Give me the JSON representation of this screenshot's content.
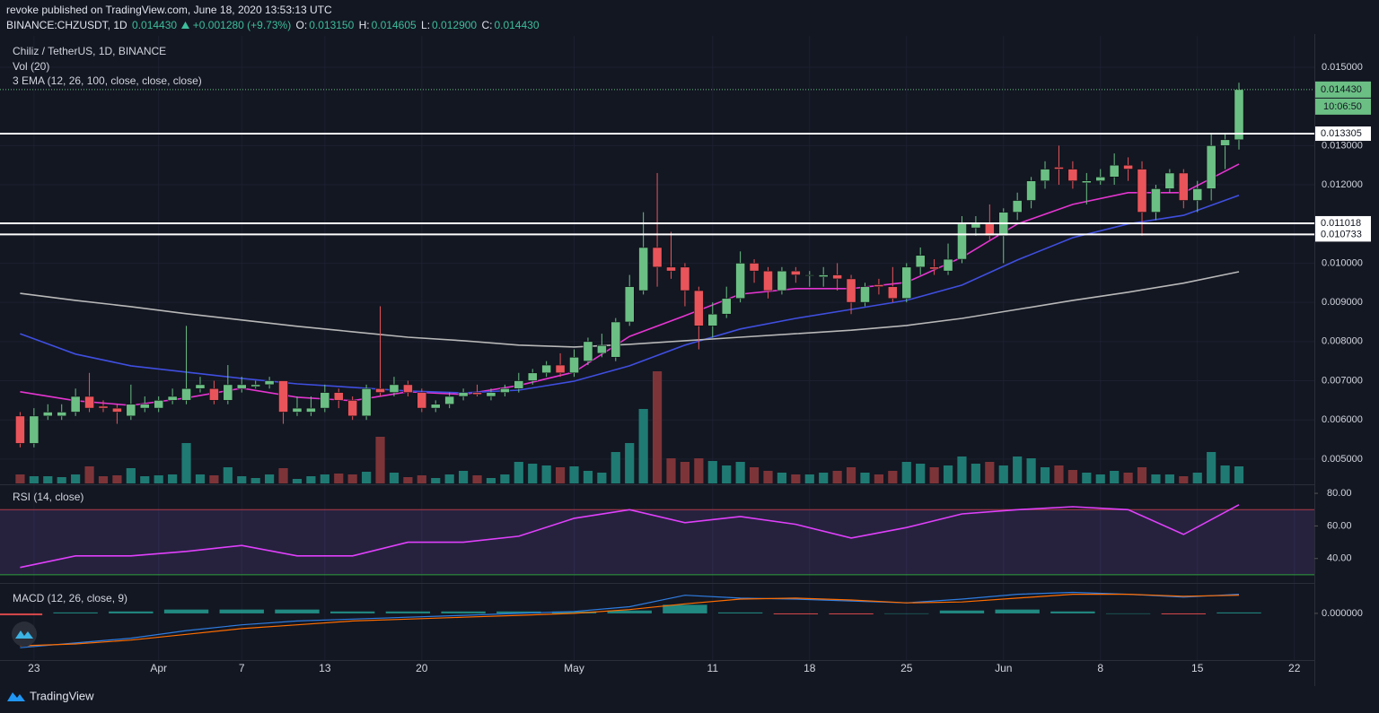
{
  "header": {
    "published": "revoke published on TradingView.com, June 18, 2020 13:53:13 UTC",
    "symbol": "BINANCE:CHZUSDT, 1D",
    "last": "0.014430",
    "change": "+0.001280 (+9.73%)",
    "ohlc": [
      {
        "label": "O:",
        "value": "0.013150"
      },
      {
        "label": "H:",
        "value": "0.014605"
      },
      {
        "label": "L:",
        "value": "0.012900"
      },
      {
        "label": "C:",
        "value": "0.014430"
      }
    ]
  },
  "footer": {
    "brand": "TradingView"
  },
  "chart_data": {
    "type": "candlestick",
    "title": "Chiliz / TetherUS, 1D, BINANCE",
    "x": [
      "2020-03-22",
      "2020-03-23",
      "2020-03-24",
      "2020-03-25",
      "2020-03-26",
      "2020-03-27",
      "2020-03-28",
      "2020-03-29",
      "2020-03-30",
      "2020-03-31",
      "2020-04-01",
      "2020-04-02",
      "2020-04-03",
      "2020-04-04",
      "2020-04-05",
      "2020-04-06",
      "2020-04-07",
      "2020-04-08",
      "2020-04-09",
      "2020-04-10",
      "2020-04-11",
      "2020-04-12",
      "2020-04-13",
      "2020-04-14",
      "2020-04-15",
      "2020-04-16",
      "2020-04-17",
      "2020-04-18",
      "2020-04-19",
      "2020-04-20",
      "2020-04-21",
      "2020-04-22",
      "2020-04-23",
      "2020-04-24",
      "2020-04-25",
      "2020-04-26",
      "2020-04-27",
      "2020-04-28",
      "2020-04-29",
      "2020-04-30",
      "2020-05-01",
      "2020-05-02",
      "2020-05-03",
      "2020-05-04",
      "2020-05-05",
      "2020-05-06",
      "2020-05-07",
      "2020-05-08",
      "2020-05-09",
      "2020-05-10",
      "2020-05-11",
      "2020-05-12",
      "2020-05-13",
      "2020-05-14",
      "2020-05-15",
      "2020-05-16",
      "2020-05-17",
      "2020-05-18",
      "2020-05-19",
      "2020-05-20",
      "2020-05-21",
      "2020-05-22",
      "2020-05-23",
      "2020-05-24",
      "2020-05-25",
      "2020-05-26",
      "2020-05-27",
      "2020-05-28",
      "2020-05-29",
      "2020-05-30",
      "2020-05-31",
      "2020-06-01",
      "2020-06-02",
      "2020-06-03",
      "2020-06-04",
      "2020-06-05",
      "2020-06-06",
      "2020-06-07",
      "2020-06-08",
      "2020-06-09",
      "2020-06-10",
      "2020-06-11",
      "2020-06-12",
      "2020-06-13",
      "2020-06-14",
      "2020-06-15",
      "2020-06-16",
      "2020-06-17",
      "2020-06-18"
    ],
    "open": [
      0.0061,
      0.0054,
      0.0061,
      0.0061,
      0.0062,
      0.0066,
      0.00635,
      0.0063,
      0.0061,
      0.0063,
      0.0063,
      0.0065,
      0.0065,
      0.0068,
      0.0068,
      0.0065,
      0.0068,
      0.00685,
      0.0069,
      0.007,
      0.0062,
      0.0062,
      0.0063,
      0.0067,
      0.0065,
      0.0061,
      0.0068,
      0.0067,
      0.0069,
      0.0067,
      0.0063,
      0.0064,
      0.0066,
      0.0067,
      0.0066,
      0.0067,
      0.0068,
      0.007,
      0.0072,
      0.0074,
      0.0072,
      0.0075,
      0.0077,
      0.0076,
      0.0085,
      0.0093,
      0.0104,
      0.0099,
      0.0099,
      0.0093,
      0.0084,
      0.0087,
      0.0091,
      0.01,
      0.0098,
      0.0093,
      0.0098,
      0.0097,
      0.00965,
      0.0097,
      0.0096,
      0.009,
      0.00945,
      0.0094,
      0.0091,
      0.0099,
      0.0099,
      0.0098,
      0.0101,
      0.0109,
      0.011,
      0.0107,
      0.0113,
      0.0116,
      0.0121,
      0.01245,
      0.0124,
      0.01205,
      0.0121,
      0.0122,
      0.0125,
      0.0124,
      0.0113,
      0.0119,
      0.0123,
      0.0116,
      0.0119,
      0.013,
      0.01315
    ],
    "high": [
      0.0062,
      0.0063,
      0.0064,
      0.0064,
      0.0068,
      0.0072,
      0.0065,
      0.0064,
      0.0069,
      0.0066,
      0.0066,
      0.0068,
      0.0084,
      0.0071,
      0.007,
      0.0074,
      0.0071,
      0.007,
      0.0071,
      0.007,
      0.0066,
      0.0066,
      0.0069,
      0.0068,
      0.0066,
      0.0069,
      0.0089,
      0.0071,
      0.007,
      0.0068,
      0.0065,
      0.0067,
      0.0068,
      0.0069,
      0.0068,
      0.0069,
      0.0072,
      0.0073,
      0.0075,
      0.0077,
      0.0078,
      0.0081,
      0.0082,
      0.0086,
      0.0097,
      0.0113,
      0.0123,
      0.0108,
      0.01,
      0.0094,
      0.009,
      0.0094,
      0.0103,
      0.0101,
      0.0099,
      0.0099,
      0.0099,
      0.0098,
      0.0099,
      0.01,
      0.0097,
      0.0095,
      0.0096,
      0.0099,
      0.01,
      0.0104,
      0.0101,
      0.0105,
      0.0112,
      0.0112,
      0.0115,
      0.0114,
      0.0118,
      0.0122,
      0.0126,
      0.013,
      0.0126,
      0.0123,
      0.0124,
      0.0128,
      0.0127,
      0.0126,
      0.012,
      0.0124,
      0.0124,
      0.0121,
      0.0133,
      0.0133,
      0.014605
    ],
    "low": [
      0.0053,
      0.0053,
      0.006,
      0.006,
      0.0061,
      0.0062,
      0.0062,
      0.0059,
      0.006,
      0.0062,
      0.0062,
      0.0064,
      0.0064,
      0.0067,
      0.0064,
      0.0064,
      0.0067,
      0.0068,
      0.0068,
      0.0059,
      0.0061,
      0.0061,
      0.0062,
      0.0063,
      0.006,
      0.006,
      0.0066,
      0.0066,
      0.0066,
      0.0062,
      0.0062,
      0.0063,
      0.0065,
      0.0066,
      0.0065,
      0.0066,
      0.0067,
      0.0069,
      0.0071,
      0.0071,
      0.0071,
      0.0074,
      0.0076,
      0.0075,
      0.0084,
      0.0092,
      0.0094,
      0.0096,
      0.0089,
      0.0078,
      0.0081,
      0.0086,
      0.009,
      0.0095,
      0.0091,
      0.0092,
      0.0095,
      0.0094,
      0.0094,
      0.0093,
      0.0087,
      0.0089,
      0.0092,
      0.009,
      0.009,
      0.0097,
      0.0097,
      0.0097,
      0.01,
      0.0107,
      0.0106,
      0.01,
      0.0111,
      0.0114,
      0.0119,
      0.012,
      0.0119,
      0.0115,
      0.012,
      0.012,
      0.0121,
      0.0107,
      0.0111,
      0.0118,
      0.0114,
      0.0113,
      0.0116,
      0.0124,
      0.0129
    ],
    "close": [
      0.0054,
      0.0061,
      0.0062,
      0.0062,
      0.0066,
      0.0063,
      0.0063,
      0.0062,
      0.0064,
      0.0064,
      0.0065,
      0.0066,
      0.0068,
      0.0069,
      0.0065,
      0.0069,
      0.0069,
      0.0069,
      0.007,
      0.0062,
      0.0063,
      0.0063,
      0.0067,
      0.0065,
      0.0061,
      0.0068,
      0.0067,
      0.0069,
      0.0067,
      0.0063,
      0.0064,
      0.0066,
      0.0067,
      0.00665,
      0.0067,
      0.0068,
      0.007,
      0.0072,
      0.0074,
      0.0072,
      0.0076,
      0.008,
      0.0079,
      0.0085,
      0.0094,
      0.0104,
      0.0099,
      0.0098,
      0.0093,
      0.0084,
      0.0087,
      0.0091,
      0.01,
      0.0098,
      0.0093,
      0.0098,
      0.0097,
      0.0097,
      0.0097,
      0.0096,
      0.009,
      0.0094,
      0.0094,
      0.0091,
      0.0099,
      0.0102,
      0.00985,
      0.0101,
      0.011,
      0.011,
      0.0107,
      0.0113,
      0.0116,
      0.0121,
      0.0124,
      0.0124,
      0.0121,
      0.0121,
      0.0122,
      0.0125,
      0.0124,
      0.0113,
      0.0119,
      0.0123,
      0.0116,
      0.0119,
      0.013,
      0.01315,
      0.01443
    ],
    "up_color": "#6bbf84",
    "down_color": "#e8545a",
    "xlim": [
      "2020-03-21",
      "2020-06-25"
    ],
    "ylim": [
      0.00438,
      0.0158
    ],
    "yticks": [
      {
        "value": 0.005,
        "label": "0.005000"
      },
      {
        "value": 0.006,
        "label": "0.006000"
      },
      {
        "value": 0.007,
        "label": "0.007000"
      },
      {
        "value": 0.008,
        "label": "0.008000"
      },
      {
        "value": 0.009,
        "label": "0.009000"
      },
      {
        "value": 0.01,
        "label": "0.010000"
      },
      {
        "value": 0.011,
        "label": "0.011000"
      },
      {
        "value": 0.012,
        "label": "0.012000"
      },
      {
        "value": 0.013,
        "label": "0.013000"
      },
      {
        "value": 0.015,
        "label": "0.015000"
      }
    ],
    "xticks": [
      {
        "value": "2020-03-23",
        "label": "23"
      },
      {
        "value": "2020-04-01",
        "label": "Apr"
      },
      {
        "value": "2020-04-07",
        "label": "7"
      },
      {
        "value": "2020-04-13",
        "label": "13"
      },
      {
        "value": "2020-04-20",
        "label": "20"
      },
      {
        "value": "2020-05-01",
        "label": "May"
      },
      {
        "value": "2020-05-11",
        "label": "11"
      },
      {
        "value": "2020-05-18",
        "label": "18"
      },
      {
        "value": "2020-05-25",
        "label": "25"
      },
      {
        "value": "2020-06-01",
        "label": "Jun"
      },
      {
        "value": "2020-06-08",
        "label": "8"
      },
      {
        "value": "2020-06-15",
        "label": "15"
      },
      {
        "value": "2020-06-22",
        "label": "22"
      }
    ],
    "grid": true,
    "levels": [
      {
        "value": 0.013305,
        "label": "0.013305"
      },
      {
        "value": 0.011018,
        "label": "0.011018"
      },
      {
        "value": 0.010733,
        "label": "0.010733"
      }
    ],
    "last_price": {
      "value": 0.01443,
      "label": "0.014430"
    },
    "countdown": "10:06:50",
    "volume": {
      "label": "Vol (20)",
      "ylim": [
        0,
        499
      ],
      "up_color": "#1f7a73",
      "down_color": "#7d3438",
      "values": [
        10,
        8,
        8,
        7,
        10,
        19,
        8,
        9,
        17,
        8,
        9,
        10,
        45,
        10,
        9,
        18,
        8,
        6,
        10,
        17,
        5,
        8,
        10,
        11,
        10,
        13,
        52,
        12,
        7,
        9,
        6,
        10,
        14,
        9,
        6,
        10,
        24,
        22,
        20,
        18,
        19,
        14,
        12,
        35,
        45,
        83,
        125,
        28,
        24,
        28,
        25,
        20,
        24,
        18,
        14,
        12,
        10,
        10,
        12,
        14,
        18,
        12,
        10,
        14,
        24,
        22,
        18,
        20,
        30,
        22,
        24,
        20,
        30,
        28,
        18,
        20,
        15,
        12,
        10,
        14,
        12,
        18,
        10,
        10,
        8,
        12,
        35,
        20,
        19
      ]
    },
    "ema": {
      "label": "3 EMA (12, 26, 100, close, close, close)",
      "x": [
        "2020-03-22",
        "2020-03-26",
        "2020-03-30",
        "2020-04-03",
        "2020-04-07",
        "2020-04-11",
        "2020-04-15",
        "2020-04-19",
        "2020-04-23",
        "2020-04-27",
        "2020-05-01",
        "2020-05-05",
        "2020-05-09",
        "2020-05-13",
        "2020-05-17",
        "2020-05-21",
        "2020-05-25",
        "2020-05-29",
        "2020-06-02",
        "2020-06-06",
        "2020-06-10",
        "2020-06-14",
        "2020-06-18"
      ],
      "series": [
        {
          "color": "#e535d0",
          "values": [
            0.00672,
            0.00649,
            0.00637,
            0.00656,
            0.00681,
            0.00658,
            0.00649,
            0.00672,
            0.00665,
            0.00688,
            0.00722,
            0.00813,
            0.00866,
            0.00921,
            0.00935,
            0.00935,
            0.00951,
            0.01015,
            0.011,
            0.0115,
            0.0118,
            0.0118,
            0.01253
          ]
        },
        {
          "color": "#3f4fe0",
          "values": [
            0.0082,
            0.00768,
            0.00738,
            0.00722,
            0.00706,
            0.00692,
            0.00683,
            0.00674,
            0.00669,
            0.00676,
            0.00699,
            0.00738,
            0.00791,
            0.00832,
            0.00859,
            0.00882,
            0.00905,
            0.00944,
            0.01008,
            0.01065,
            0.011,
            0.01122,
            0.01173
          ]
        },
        {
          "color": "#b8b8b8",
          "values": [
            0.00923,
            0.00905,
            0.00889,
            0.00871,
            0.00855,
            0.00839,
            0.00825,
            0.00811,
            0.00802,
            0.00791,
            0.00786,
            0.00793,
            0.00802,
            0.00811,
            0.0082,
            0.00829,
            0.00841,
            0.00859,
            0.00882,
            0.00905,
            0.00926,
            0.00949,
            0.00978
          ]
        }
      ]
    },
    "rsi": {
      "label": "RSI (14, close)",
      "color": "#e040fb",
      "x": [
        "2020-03-22",
        "2020-03-26",
        "2020-03-30",
        "2020-04-03",
        "2020-04-07",
        "2020-04-11",
        "2020-04-15",
        "2020-04-19",
        "2020-04-23",
        "2020-04-27",
        "2020-05-01",
        "2020-05-05",
        "2020-05-09",
        "2020-05-13",
        "2020-05-17",
        "2020-05-21",
        "2020-05-25",
        "2020-05-29",
        "2020-06-02",
        "2020-06-06",
        "2020-06-10",
        "2020-06-14",
        "2020-06-18"
      ],
      "values": [
        34.5,
        41.6,
        41.6,
        44.4,
        48,
        41.6,
        41.6,
        50,
        50,
        53.7,
        64.7,
        70,
        62,
        65.8,
        61,
        52.6,
        59,
        67.4,
        70,
        71.8,
        70,
        54.8,
        73
      ],
      "ylim": [
        25,
        85
      ],
      "yticks": [
        {
          "value": 40,
          "label": "40.00"
        },
        {
          "value": 60,
          "label": "60.00"
        },
        {
          "value": 80,
          "label": "80.00"
        }
      ],
      "bands": [
        {
          "value": 70,
          "color": "#b03a48"
        },
        {
          "value": 30,
          "color": "#2e9e3a"
        }
      ]
    },
    "macd": {
      "label": "MACD (12, 26, close, 9)",
      "x": [
        "2020-03-22",
        "2020-03-26",
        "2020-03-30",
        "2020-04-03",
        "2020-04-07",
        "2020-04-11",
        "2020-04-15",
        "2020-04-19",
        "2020-04-23",
        "2020-04-27",
        "2020-05-01",
        "2020-05-05",
        "2020-05-09",
        "2020-05-13",
        "2020-05-17",
        "2020-05-21",
        "2020-05-25",
        "2020-05-29",
        "2020-06-02",
        "2020-06-06",
        "2020-06-10",
        "2020-06-14",
        "2020-06-18"
      ],
      "series": [
        {
          "color": "#2f7de0",
          "values": [
            -0.00036,
            -0.00031,
            -0.00026,
            -0.00018,
            -0.00012,
            -8e-05,
            -6e-05,
            -4e-05,
            -2e-05,
            0,
            2e-05,
            7e-05,
            0.00019,
            0.00016,
            0.00015,
            0.00013,
            0.00011,
            0.00015,
            0.0002,
            0.00022,
            0.0002,
            0.00017,
            0.0002
          ]
        },
        {
          "color": "#ff6d00",
          "values": [
            -0.00034,
            -0.00032,
            -0.00028,
            -0.00022,
            -0.00016,
            -0.00012,
            -8e-05,
            -6e-05,
            -4e-05,
            -2e-05,
            0,
            4e-05,
            0.0001,
            0.00015,
            0.00016,
            0.00014,
            0.00011,
            0.00012,
            0.00016,
            0.0002,
            0.0002,
            0.00018,
            0.00019
          ]
        }
      ],
      "histogram": [
        -2e-05,
        1e-05,
        2e-05,
        4e-05,
        4e-05,
        4e-05,
        2e-05,
        2e-05,
        2e-05,
        2e-05,
        2e-05,
        3e-05,
        9e-05,
        1e-05,
        -1e-05,
        -1e-05,
        0,
        3e-05,
        4e-05,
        2e-05,
        0,
        -1e-05,
        1e-05
      ],
      "histogram_up_color": "#26a69a",
      "histogram_down_color": "#ff5252",
      "ylim": [
        -0.00048,
        0.0003
      ],
      "yticks": [
        {
          "value": 0,
          "label": "0.000000"
        }
      ]
    }
  }
}
